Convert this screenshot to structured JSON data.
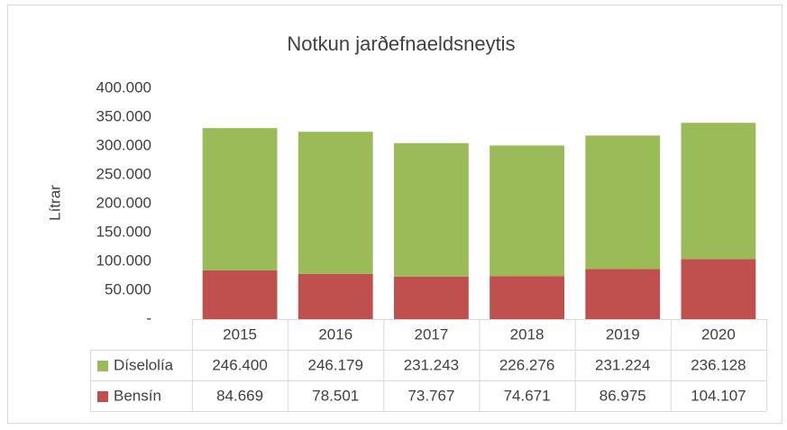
{
  "chart_data": {
    "type": "bar",
    "stacked": true,
    "title": "Notkun jarðefnaeldsneytis",
    "y_label": "Lítrar",
    "categories": [
      "2015",
      "2016",
      "2017",
      "2018",
      "2019",
      "2020"
    ],
    "series": [
      {
        "name": "Díselolía",
        "color": "#9bbb59",
        "values": [
          246400,
          246179,
          231243,
          226276,
          231224,
          236128
        ],
        "value_labels": [
          "246.400",
          "246.179",
          "231.243",
          "226.276",
          "231.224",
          "236.128"
        ]
      },
      {
        "name": "Bensín",
        "color": "#c0504d",
        "values": [
          84669,
          78501,
          73767,
          74671,
          86975,
          104107
        ],
        "value_labels": [
          "84.669",
          "78.501",
          "73.767",
          "74.671",
          "86.975",
          "104.107"
        ]
      }
    ],
    "ylim": [
      0,
      400000
    ],
    "yticks": [
      {
        "value": 0,
        "label": "-"
      },
      {
        "value": 50000,
        "label": "50.000"
      },
      {
        "value": 100000,
        "label": "100.000"
      },
      {
        "value": 150000,
        "label": "150.000"
      },
      {
        "value": 200000,
        "label": "200.000"
      },
      {
        "value": 250000,
        "label": "250.000"
      },
      {
        "value": 300000,
        "label": "300.000"
      },
      {
        "value": 350000,
        "label": "350.000"
      },
      {
        "value": 400000,
        "label": "400.000"
      }
    ],
    "grid": false,
    "data_table": true
  }
}
